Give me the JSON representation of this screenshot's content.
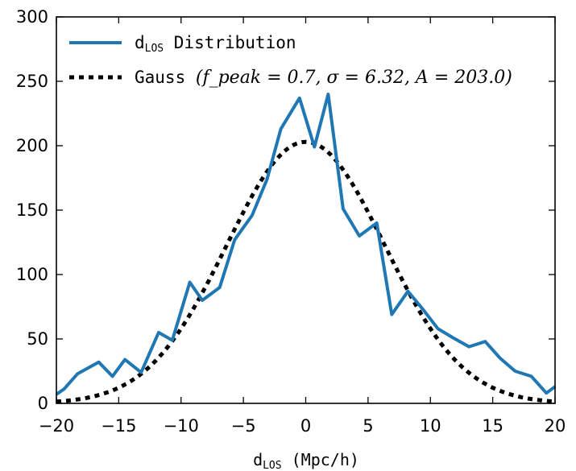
{
  "chart_data": {
    "type": "line",
    "title": "",
    "xlabel": {
      "main": "d",
      "sub": "LOS",
      "rest": " (Mpc/h)"
    },
    "ylabel": "",
    "xlim": [
      -20,
      20
    ],
    "ylim": [
      0,
      300
    ],
    "x_ticks": [
      -20,
      -15,
      -10,
      -5,
      0,
      5,
      10,
      15,
      20
    ],
    "x_tick_labels": [
      "−20",
      "−15",
      "−10",
      "−5",
      "0",
      "5",
      "10",
      "15",
      "20"
    ],
    "y_ticks": [
      0,
      50,
      100,
      150,
      200,
      250,
      300
    ],
    "y_tick_labels": [
      "0",
      "50",
      "100",
      "150",
      "200",
      "250",
      "300"
    ],
    "grid": false,
    "legend_placement": "top-left",
    "series": [
      {
        "name": {
          "main": "d",
          "sub": "LOS",
          "rest": " Distribution"
        },
        "style": "solid",
        "color": "#1f77b4",
        "x": [
          -20,
          -19.4,
          -18.3,
          -16.6,
          -15.5,
          -14.5,
          -13.2,
          -11.8,
          -10.7,
          -9.3,
          -8.3,
          -6.9,
          -5.7,
          -4.3,
          -3.1,
          -2.0,
          -0.5,
          0.7,
          1.8,
          3.0,
          4.3,
          5.7,
          6.9,
          8.2,
          9.4,
          10.6,
          11.8,
          13.1,
          14.4,
          15.6,
          16.8,
          18.1,
          19.3,
          20
        ],
        "y": [
          7,
          11,
          23,
          32,
          21,
          34,
          24,
          55,
          49,
          94,
          80,
          90,
          127,
          146,
          174,
          213,
          237,
          199,
          240,
          151,
          130,
          140,
          69,
          87,
          73,
          58,
          51,
          44,
          48,
          35,
          25,
          21,
          8,
          13
        ]
      },
      {
        "name": {
          "main": "Gauss ",
          "math": "(f_peak = 0.7, σ = 6.32, A = 203.0)"
        },
        "style": "dotted",
        "color": "#000000",
        "function": "gaussian",
        "params": {
          "f_peak": 0.7,
          "sigma": 6.32,
          "A": 203.0,
          "mu": 0
        }
      }
    ]
  }
}
